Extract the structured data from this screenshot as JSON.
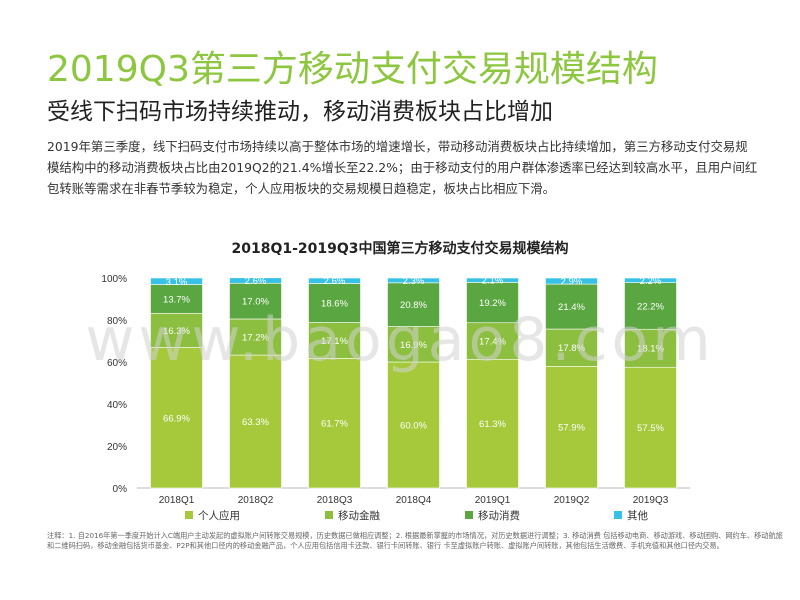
{
  "title": "2019Q3第三方移动支付交易规模结构",
  "subtitle": "受线下扫码市场持续推动，移动消费板块占比增加",
  "paragraph": "2019年第三季度，线下扫码支付市场持续以高于整体市场的增速增长，带动移动消费板块占比持续增加，第三方移动支付交易规模结构中的移动消费板块占比由2019Q2的21.4%增长至22.2%；由于移动支付的用户群体渗透率已经达到较高水平，且用户间红包转账等需求在非春节季较为稳定，个人应用板块的交易规模日趋稳定，板块占比相应下滑。",
  "footnote": "注释：1. 自2016年第一季度开始计入C端用户主动发起的虚拟账户间转账交易规模，历史数据已做相应调整；2. 根据最新掌握的市场情况，对历史数据进行调整；3. 移动消费 包括移动电商、移动游戏、移动团购、网约车、移动航旅和二维码扫码，移动金融包括货币基金、P2P和其他口径内的移动金融产品，个人应用包括信用卡还款、银行卡间转账、银行 卡至虚拟账户转账、虚拟账户间转账，其他包括生活缴费、手机充值和其他口径内交易。",
  "watermark": "www.baogao8.com",
  "chart_data": {
    "type": "bar",
    "stacked": true,
    "title": "2018Q1-2019Q3中国第三方移动支付交易规模结构",
    "categories": [
      "2018Q1",
      "2018Q2",
      "2018Q3",
      "2018Q4",
      "2019Q1",
      "2019Q2",
      "2019Q3"
    ],
    "yticks": [
      "0%",
      "20%",
      "40%",
      "60%",
      "80%",
      "100%"
    ],
    "ylim": [
      0,
      100
    ],
    "legend_position": "bottom",
    "series": [
      {
        "name": "个人应用",
        "color": "#a5c93a",
        "values": [
          66.9,
          63.3,
          61.7,
          60.0,
          61.3,
          57.9,
          57.5
        ],
        "labels": [
          "66.9%",
          "63.3%",
          "61.7%",
          "60.0%",
          "61.3%",
          "57.9%",
          "57.5%"
        ]
      },
      {
        "name": "移动金融",
        "color": "#8cbf3f",
        "values": [
          16.3,
          17.2,
          17.1,
          16.9,
          17.4,
          17.8,
          18.1
        ],
        "labels": [
          "16.3%",
          "17.2%",
          "17.1%",
          "16.9%",
          "17.4%",
          "17.8%",
          "18.1%"
        ]
      },
      {
        "name": "移动消费",
        "color": "#5aa640",
        "values": [
          13.7,
          17.0,
          18.6,
          20.8,
          19.2,
          21.4,
          22.2
        ],
        "labels": [
          "13.7%",
          "17.0%",
          "18.6%",
          "20.8%",
          "19.2%",
          "21.4%",
          "22.2%"
        ]
      },
      {
        "name": "其他",
        "color": "#37c1e6",
        "values": [
          3.1,
          2.6,
          2.6,
          2.3,
          2.1,
          2.9,
          2.2
        ],
        "labels": [
          "3.1%",
          "2.6%",
          "2.6%",
          "2.3%",
          "2.1%",
          "2.9%",
          "2.2%"
        ]
      }
    ]
  }
}
